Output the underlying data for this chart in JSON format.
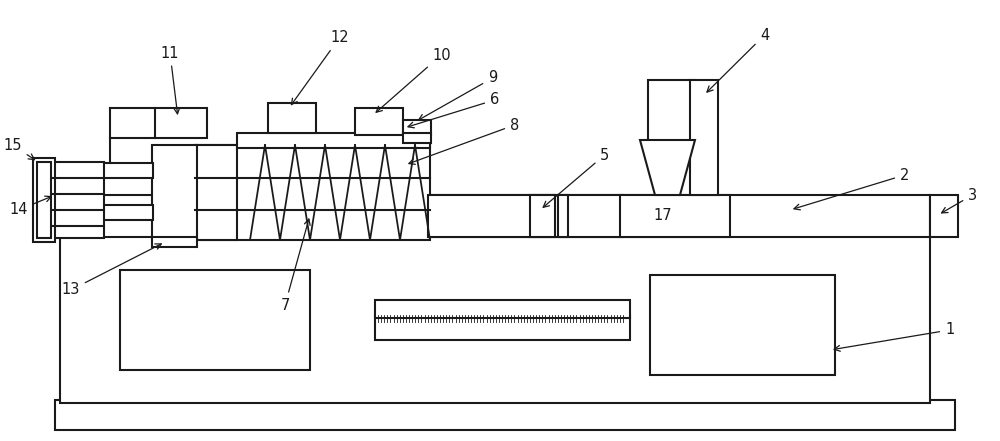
{
  "lc": "#1a1a1a",
  "lw": 1.5,
  "bg": "white"
}
